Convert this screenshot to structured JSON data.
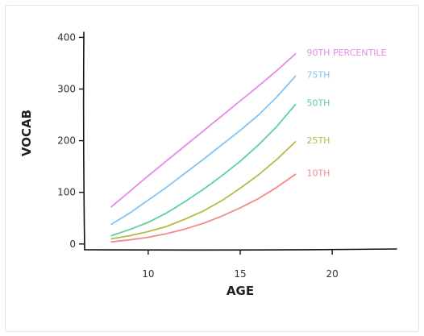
{
  "chart_data": {
    "type": "line",
    "title": "",
    "xlabel": "AGE",
    "ylabel": "VOCAB",
    "xlim": [
      6.5,
      23.5
    ],
    "ylim": [
      -5,
      410
    ],
    "xticks": [
      10,
      15,
      20
    ],
    "yticks": [
      0,
      100,
      200,
      300,
      400
    ],
    "grid": false,
    "legend": "inline-right",
    "x": [
      8,
      9,
      10,
      11,
      12,
      13,
      14,
      15,
      16,
      17,
      18
    ],
    "series": [
      {
        "name": "90TH PERCENTILE",
        "color": "#e58ae8",
        "values": [
          72,
          102,
          132,
          161,
          190,
          219,
          248,
          277,
          306,
          336,
          368
        ]
      },
      {
        "name": "75TH",
        "color": "#7fc4f2",
        "values": [
          38,
          60,
          85,
          110,
          137,
          164,
          192,
          220,
          250,
          285,
          325
        ]
      },
      {
        "name": "50TH",
        "color": "#5fcf9c",
        "values": [
          16,
          28,
          42,
          60,
          82,
          106,
          132,
          160,
          192,
          228,
          270
        ]
      },
      {
        "name": "25TH",
        "color": "#b9b84a",
        "values": [
          10,
          16,
          24,
          34,
          48,
          64,
          84,
          108,
          134,
          164,
          198
        ]
      },
      {
        "name": "10TH",
        "color": "#f28a8a",
        "values": [
          4,
          8,
          13,
          20,
          29,
          40,
          54,
          70,
          88,
          110,
          135
        ]
      }
    ]
  }
}
